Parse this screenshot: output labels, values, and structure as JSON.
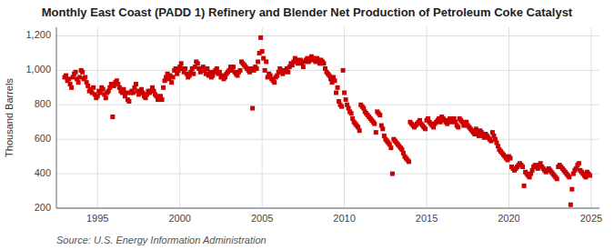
{
  "chart_data": {
    "type": "scatter",
    "title": "Monthly East Coast (PADD 1) Refinery and Blender Net Production of Petroleum Coke Catalyst",
    "ylabel": "Thousand Barrels",
    "annotation": "Source: U.S. Energy Information Administration",
    "color": "#cc0000",
    "marker": "square",
    "grid": true,
    "xlim": [
      1992.5,
      2025.5
    ],
    "xticks": [
      1995,
      2000,
      2005,
      2010,
      2015,
      2020,
      2025
    ],
    "ylim": [
      200,
      1250
    ],
    "yticks": [
      200,
      400,
      600,
      800,
      {
        "value": 1000,
        "label": "1,000"
      },
      {
        "value": 1200,
        "label": "1,200"
      }
    ],
    "x": [
      1993.0,
      1993.083,
      1993.167,
      1993.25,
      1993.333,
      1993.417,
      1993.5,
      1993.583,
      1993.667,
      1993.75,
      1993.833,
      1993.917,
      1994.0,
      1994.083,
      1994.167,
      1994.25,
      1994.333,
      1994.417,
      1994.5,
      1994.583,
      1994.667,
      1994.75,
      1994.833,
      1994.917,
      1995.0,
      1995.083,
      1995.167,
      1995.25,
      1995.333,
      1995.417,
      1995.5,
      1995.583,
      1995.667,
      1995.75,
      1995.833,
      1995.917,
      1996.0,
      1996.083,
      1996.167,
      1996.25,
      1996.333,
      1996.417,
      1996.5,
      1996.583,
      1996.667,
      1996.75,
      1996.833,
      1996.917,
      1997.0,
      1997.083,
      1997.167,
      1997.25,
      1997.333,
      1997.417,
      1997.5,
      1997.583,
      1997.667,
      1997.75,
      1997.833,
      1997.917,
      1998.0,
      1998.083,
      1998.167,
      1998.25,
      1998.333,
      1998.417,
      1998.5,
      1998.583,
      1998.667,
      1998.75,
      1998.833,
      1998.917,
      1999.0,
      1999.083,
      1999.167,
      1999.25,
      1999.333,
      1999.417,
      1999.5,
      1999.583,
      1999.667,
      1999.75,
      1999.833,
      1999.917,
      2000.0,
      2000.083,
      2000.167,
      2000.25,
      2000.333,
      2000.417,
      2000.5,
      2000.583,
      2000.667,
      2000.75,
      2000.833,
      2000.917,
      2001.0,
      2001.083,
      2001.167,
      2001.25,
      2001.333,
      2001.417,
      2001.5,
      2001.583,
      2001.667,
      2001.75,
      2001.833,
      2001.917,
      2002.0,
      2002.083,
      2002.167,
      2002.25,
      2002.333,
      2002.417,
      2002.5,
      2002.583,
      2002.667,
      2002.75,
      2002.833,
      2002.917,
      2003.0,
      2003.083,
      2003.167,
      2003.25,
      2003.333,
      2003.417,
      2003.5,
      2003.583,
      2003.667,
      2003.75,
      2003.833,
      2003.917,
      2004.0,
      2004.083,
      2004.167,
      2004.25,
      2004.333,
      2004.417,
      2004.5,
      2004.583,
      2004.667,
      2004.75,
      2004.833,
      2004.917,
      2005.0,
      2005.083,
      2005.167,
      2005.25,
      2005.333,
      2005.417,
      2005.5,
      2005.583,
      2005.667,
      2005.75,
      2005.833,
      2005.917,
      2006.0,
      2006.083,
      2006.167,
      2006.25,
      2006.333,
      2006.417,
      2006.5,
      2006.583,
      2006.667,
      2006.75,
      2006.833,
      2006.917,
      2007.0,
      2007.083,
      2007.167,
      2007.25,
      2007.333,
      2007.417,
      2007.5,
      2007.583,
      2007.667,
      2007.75,
      2007.833,
      2007.917,
      2008.0,
      2008.083,
      2008.167,
      2008.25,
      2008.333,
      2008.417,
      2008.5,
      2008.583,
      2008.667,
      2008.75,
      2008.833,
      2008.917,
      2009.0,
      2009.083,
      2009.167,
      2009.25,
      2009.333,
      2009.417,
      2009.5,
      2009.583,
      2009.667,
      2009.75,
      2009.833,
      2009.917,
      2010.0,
      2010.083,
      2010.167,
      2010.25,
      2010.333,
      2010.417,
      2010.5,
      2010.583,
      2010.667,
      2010.75,
      2010.833,
      2010.917,
      2011.0,
      2011.083,
      2011.167,
      2011.25,
      2011.333,
      2011.417,
      2011.5,
      2011.583,
      2011.667,
      2011.75,
      2011.833,
      2011.917,
      2012.0,
      2012.083,
      2012.167,
      2012.25,
      2012.333,
      2012.417,
      2012.5,
      2012.583,
      2012.667,
      2012.75,
      2012.833,
      2012.917,
      2013.0,
      2013.083,
      2013.167,
      2013.25,
      2013.333,
      2013.417,
      2013.5,
      2013.583,
      2013.667,
      2013.75,
      2013.833,
      2013.917,
      2014.0,
      2014.083,
      2014.167,
      2014.25,
      2014.333,
      2014.417,
      2014.5,
      2014.583,
      2014.667,
      2014.75,
      2014.833,
      2014.917,
      2015.0,
      2015.083,
      2015.167,
      2015.25,
      2015.333,
      2015.417,
      2015.5,
      2015.583,
      2015.667,
      2015.75,
      2015.833,
      2015.917,
      2016.0,
      2016.083,
      2016.167,
      2016.25,
      2016.333,
      2016.417,
      2016.5,
      2016.583,
      2016.667,
      2016.75,
      2016.833,
      2016.917,
      2017.0,
      2017.083,
      2017.167,
      2017.25,
      2017.333,
      2017.417,
      2017.5,
      2017.583,
      2017.667,
      2017.75,
      2017.833,
      2017.917,
      2018.0,
      2018.083,
      2018.167,
      2018.25,
      2018.333,
      2018.417,
      2018.5,
      2018.583,
      2018.667,
      2018.75,
      2018.833,
      2018.917,
      2019.0,
      2019.083,
      2019.167,
      2019.25,
      2019.333,
      2019.417,
      2019.5,
      2019.583,
      2019.667,
      2019.75,
      2019.833,
      2019.917,
      2020.0,
      2020.083,
      2020.167,
      2020.25,
      2020.333,
      2020.417,
      2020.5,
      2020.583,
      2020.667,
      2020.75,
      2020.833,
      2020.917,
      2021.0,
      2021.083,
      2021.167,
      2021.25,
      2021.333,
      2021.417,
      2021.5,
      2021.583,
      2021.667,
      2021.75,
      2021.833,
      2021.917,
      2022.0,
      2022.083,
      2022.167,
      2022.25,
      2022.333,
      2022.417,
      2022.5,
      2022.583,
      2022.667,
      2022.75,
      2022.833,
      2022.917,
      2023.0,
      2023.083,
      2023.167,
      2023.25,
      2023.333,
      2023.417,
      2023.5,
      2023.583,
      2023.667,
      2023.75,
      2023.833,
      2023.917,
      2024.0,
      2024.083,
      2024.167,
      2024.25,
      2024.333,
      2024.417,
      2024.5,
      2024.583,
      2024.667,
      2024.75,
      2024.833,
      2024.917
    ],
    "values": [
      960,
      970,
      940,
      950,
      920,
      900,
      960,
      980,
      990,
      950,
      930,
      960,
      1000,
      990,
      950,
      960,
      930,
      910,
      880,
      890,
      870,
      900,
      860,
      840,
      850,
      880,
      870,
      900,
      890,
      860,
      840,
      870,
      880,
      900,
      920,
      730,
      910,
      930,
      940,
      920,
      900,
      880,
      870,
      890,
      850,
      870,
      830,
      820,
      870,
      880,
      870,
      900,
      920,
      880,
      860,
      870,
      890,
      870,
      850,
      840,
      860,
      880,
      870,
      880,
      900,
      880,
      860,
      850,
      830,
      840,
      850,
      830,
      900,
      940,
      960,
      980,
      950,
      970,
      930,
      960,
      1000,
      1010,
      980,
      1000,
      1020,
      1040,
      1010,
      990,
      1010,
      980,
      960,
      970,
      990,
      1010,
      980,
      1020,
      1050,
      1040,
      1010,
      990,
      1000,
      1020,
      1000,
      980,
      1010,
      970,
      990,
      960,
      970,
      990,
      1000,
      1010,
      980,
      990,
      960,
      970,
      950,
      960,
      980,
      990,
      1000,
      1020,
      1000,
      1020,
      990,
      980,
      970,
      990,
      1000,
      1050,
      1040,
      1030,
      1020,
      1010,
      1000,
      990,
      1010,
      780,
      1000,
      1020,
      1010,
      1050,
      1100,
      1190,
      1110,
      1070,
      1000,
      1050,
      960,
      980,
      970,
      950,
      940,
      930,
      960,
      970,
      990,
      1010,
      1000,
      980,
      990,
      1000,
      1010,
      990,
      1020,
      1040,
      1030,
      1050,
      1070,
      1060,
      1040,
      1050,
      1060,
      1040,
      1020,
      1050,
      1060,
      1070,
      1050,
      1060,
      1080,
      1070,
      1060,
      1050,
      1070,
      1060,
      1040,
      1060,
      1050,
      1040,
      1010,
      990,
      980,
      970,
      950,
      930,
      960,
      940,
      870,
      900,
      820,
      800,
      790,
      1000,
      870,
      830,
      800,
      780,
      760,
      750,
      720,
      700,
      690,
      680,
      670,
      650,
      800,
      790,
      780,
      760,
      750,
      740,
      730,
      720,
      710,
      700,
      690,
      640,
      760,
      750,
      740,
      680,
      660,
      620,
      600,
      590,
      580,
      570,
      550,
      400,
      600,
      590,
      580,
      570,
      560,
      550,
      540,
      520,
      500,
      490,
      480,
      470,
      700,
      690,
      680,
      670,
      680,
      690,
      700,
      710,
      690,
      680,
      670,
      660,
      710,
      720,
      700,
      690,
      680,
      670,
      690,
      700,
      710,
      720,
      700,
      730,
      720,
      710,
      700,
      690,
      710,
      720,
      700,
      710,
      720,
      700,
      680,
      670,
      720,
      710,
      700,
      680,
      690,
      700,
      680,
      670,
      660,
      650,
      640,
      630,
      660,
      640,
      620,
      650,
      640,
      620,
      610,
      630,
      620,
      610,
      600,
      590,
      640,
      620,
      600,
      580,
      560,
      540,
      530,
      520,
      510,
      500,
      490,
      480,
      500,
      490,
      440,
      430,
      420,
      430,
      440,
      450,
      460,
      450,
      440,
      330,
      410,
      400,
      390,
      380,
      400,
      420,
      440,
      450,
      440,
      430,
      450,
      460,
      440,
      430,
      420,
      410,
      420,
      430,
      420,
      410,
      400,
      390,
      380,
      370,
      440,
      450,
      440,
      430,
      420,
      410,
      400,
      390,
      380,
      220,
      310,
      400,
      420,
      430,
      450,
      460,
      420,
      410,
      400,
      390,
      380,
      410,
      400,
      390
    ]
  }
}
